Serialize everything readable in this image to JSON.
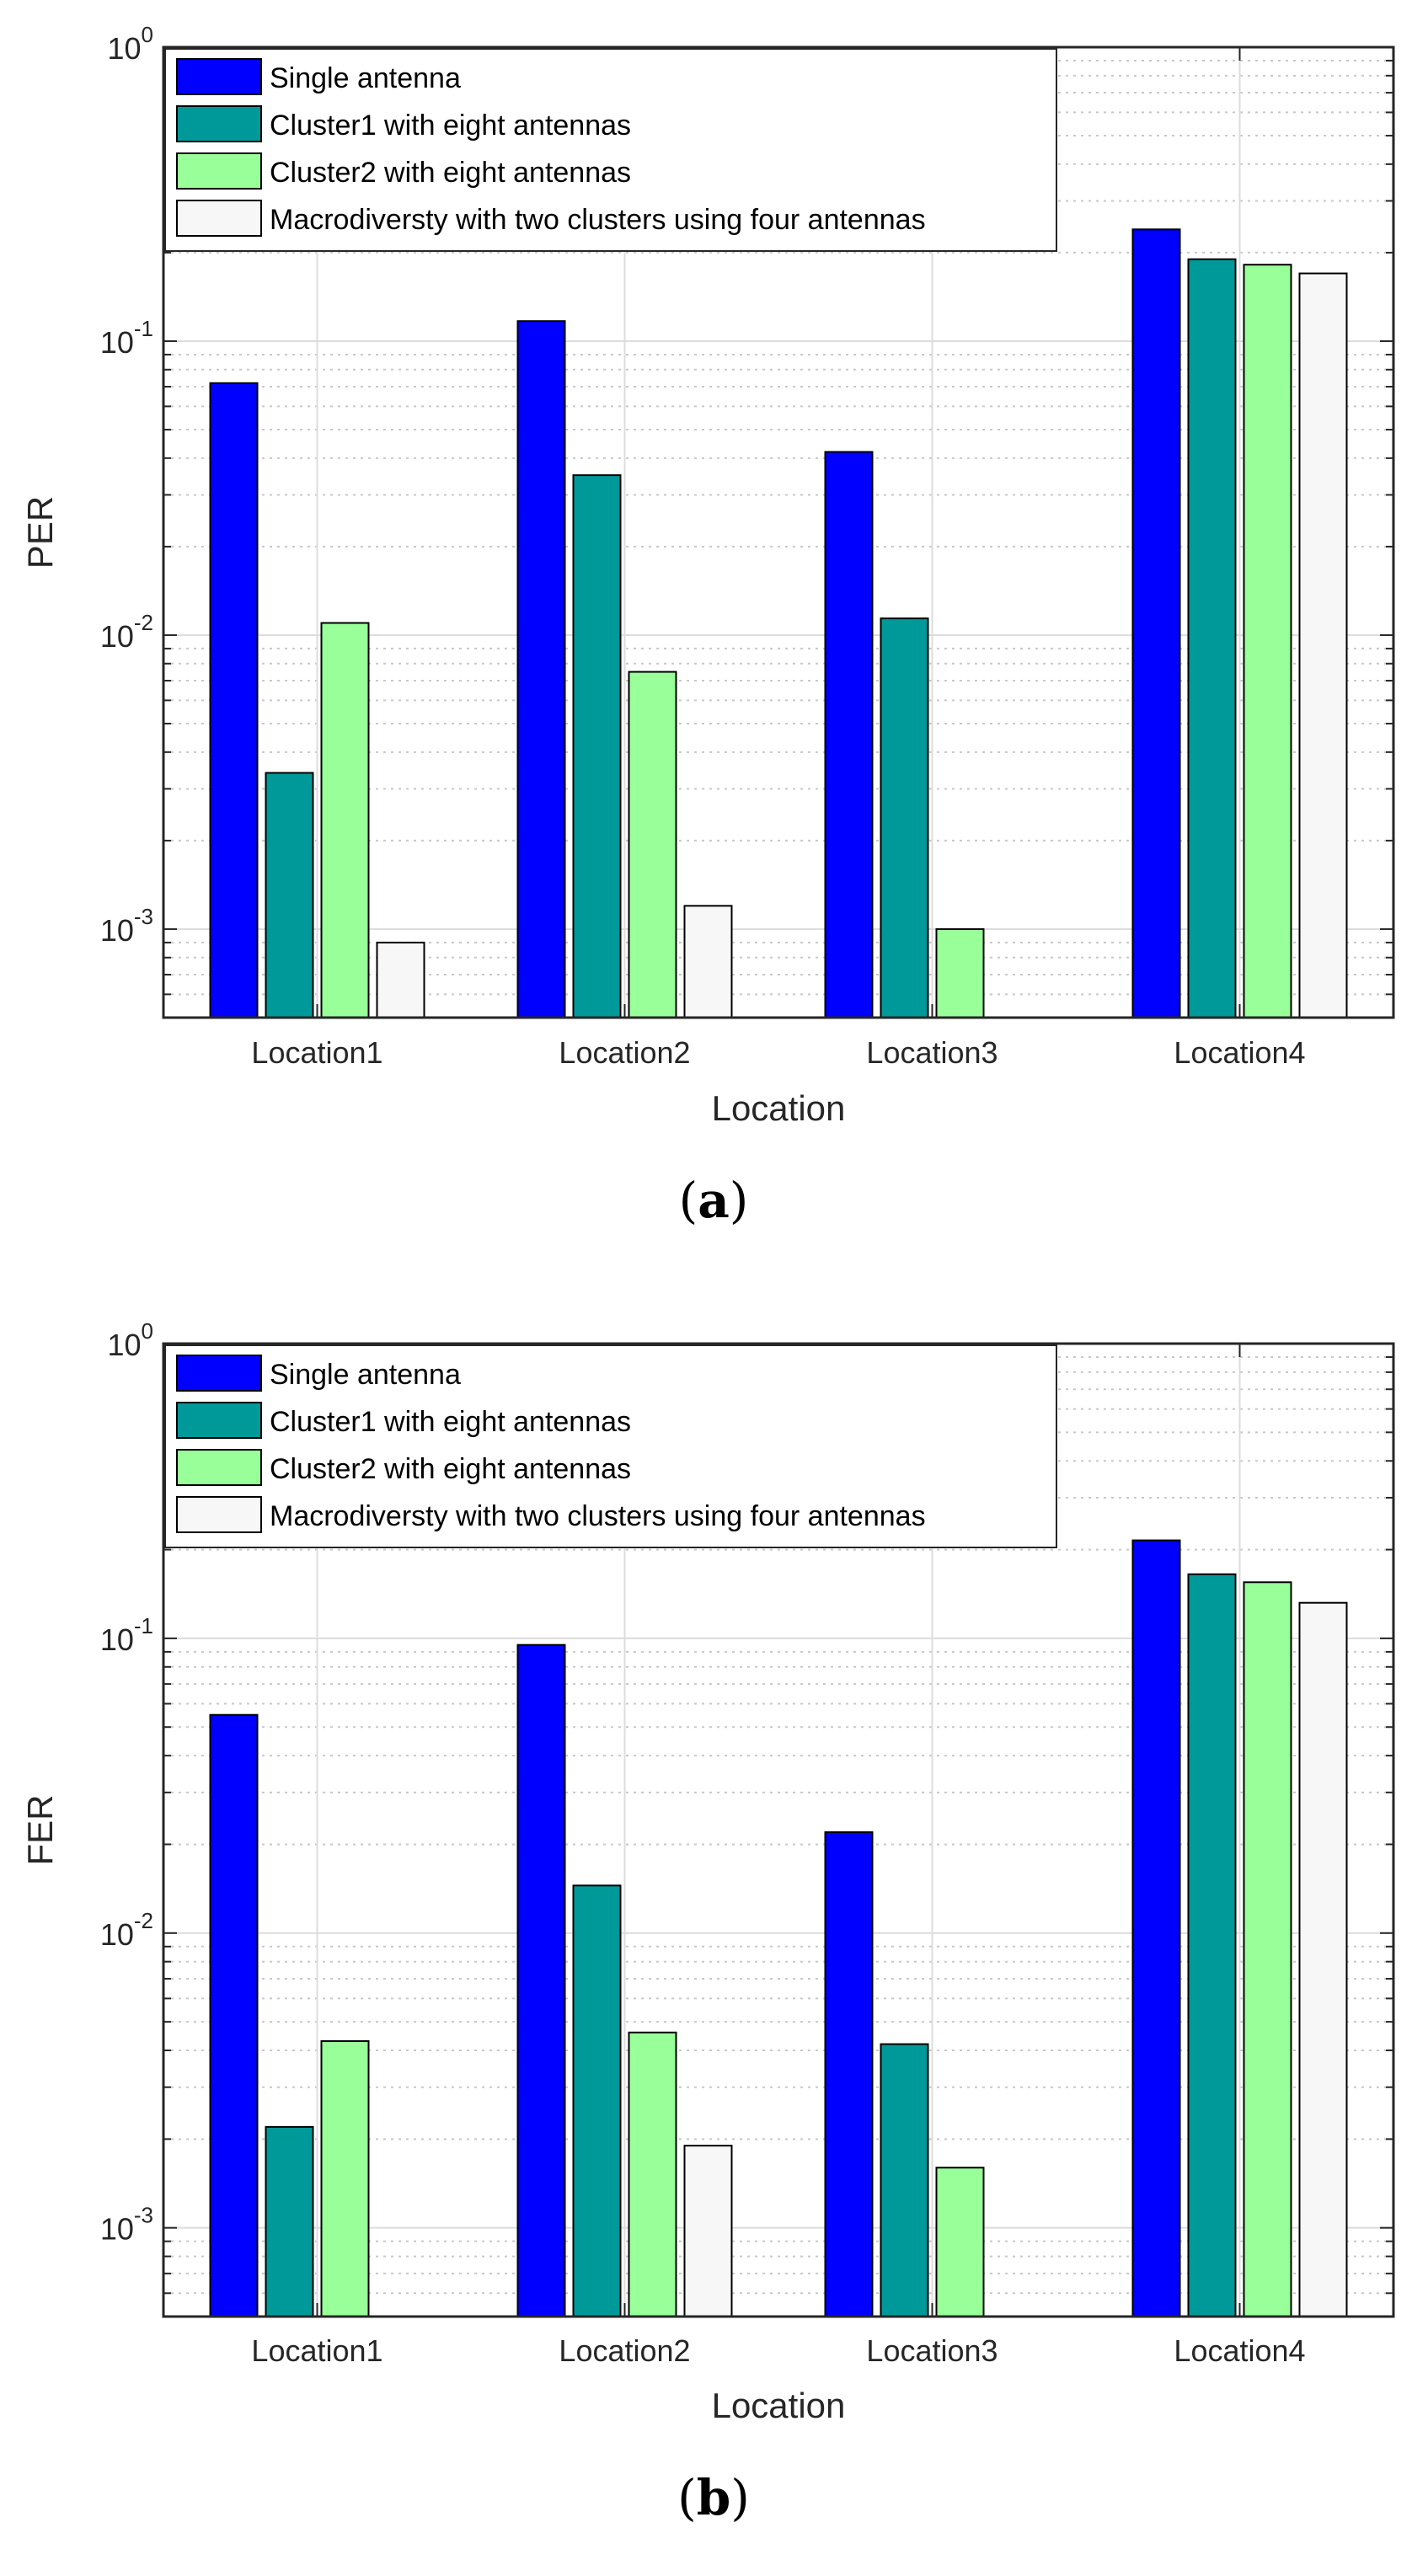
{
  "chart_data": [
    {
      "type": "bar",
      "caption_letter": "a",
      "xlabel": "Location",
      "ylabel": "PER",
      "yscale": "log",
      "ylim": [
        0.0005,
        1
      ],
      "yticks": [
        0.001,
        0.01,
        0.1,
        1
      ],
      "ytick_labels": [
        {
          "base": "10",
          "exp": "-3"
        },
        {
          "base": "10",
          "exp": "-2"
        },
        {
          "base": "10",
          "exp": "-1"
        },
        {
          "base": "10",
          "exp": "0"
        }
      ],
      "grid": true,
      "legend_position": "top-left",
      "categories": [
        "Location1",
        "Location2",
        "Location3",
        "Location4"
      ],
      "series": [
        {
          "name": "Single antenna",
          "color": "#0000FF",
          "values": [
            0.072,
            0.117,
            0.042,
            0.24
          ]
        },
        {
          "name": "Cluster1 with eight antennas",
          "color": "#009999",
          "values": [
            0.0034,
            0.035,
            0.0114,
            0.19
          ]
        },
        {
          "name": "Cluster2 with eight antennas",
          "color": "#99FF99",
          "values": [
            0.011,
            0.0075,
            0.001,
            0.182
          ]
        },
        {
          "name": "Macrodiversty with two clusters using four antennas",
          "color": "#F7F7F7",
          "values": [
            0.0009,
            0.0012,
            null,
            0.17
          ]
        }
      ]
    },
    {
      "type": "bar",
      "caption_letter": "b",
      "xlabel": "Location",
      "ylabel": "FER",
      "yscale": "log",
      "ylim": [
        0.0005,
        1
      ],
      "yticks": [
        0.001,
        0.01,
        0.1,
        1
      ],
      "ytick_labels": [
        {
          "base": "10",
          "exp": "-3"
        },
        {
          "base": "10",
          "exp": "-2"
        },
        {
          "base": "10",
          "exp": "-1"
        },
        {
          "base": "10",
          "exp": "0"
        }
      ],
      "grid": true,
      "legend_position": "top-left",
      "categories": [
        "Location1",
        "Location2",
        "Location3",
        "Location4"
      ],
      "series": [
        {
          "name": "Single antenna",
          "color": "#0000FF",
          "values": [
            0.055,
            0.095,
            0.022,
            0.215
          ]
        },
        {
          "name": "Cluster1 with eight antennas",
          "color": "#009999",
          "values": [
            0.0022,
            0.0145,
            0.0042,
            0.165
          ]
        },
        {
          "name": "Cluster2 with eight antennas",
          "color": "#99FF99",
          "values": [
            0.0043,
            0.0046,
            0.0016,
            0.155
          ]
        },
        {
          "name": "Macrodiversty with two clusters using four antennas",
          "color": "#F7F7F7",
          "values": [
            null,
            0.0019,
            null,
            0.132
          ]
        }
      ]
    }
  ]
}
